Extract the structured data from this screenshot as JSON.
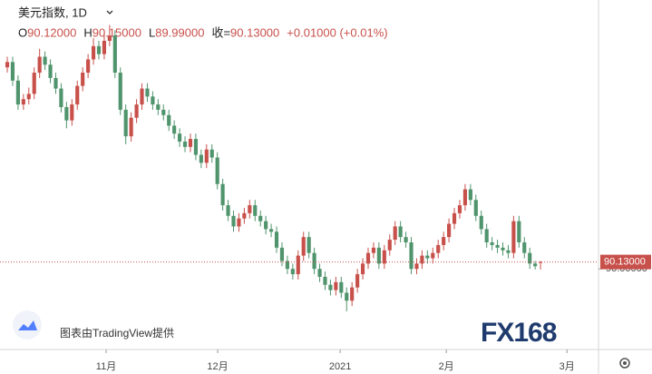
{
  "chart_data": {
    "type": "candlestick",
    "title": "美元指数, 1D",
    "ohlc_legend": [
      {
        "label": "O",
        "value": "90.12000"
      },
      {
        "label": "H",
        "value": "90.15000"
      },
      {
        "label": "L",
        "value": "89.99000"
      },
      {
        "label": "收=",
        "value": "90.13000"
      }
    ],
    "change": "+0.01000 (+0.01%)",
    "attribution": "图表由TradingView提供",
    "watermark": "FX168",
    "up_color": "#c8504a",
    "down_color": "#4f946c",
    "xlim": [
      -1.35,
      109.76
    ],
    "ylim": [
      88.48,
      95.07
    ],
    "xticks": [
      {
        "value": 18.35,
        "label": "11月"
      },
      {
        "value": 39.06,
        "label": "12月"
      },
      {
        "value": 61.8,
        "label": "2021"
      },
      {
        "value": 81.5,
        "label": "2月"
      },
      {
        "value": 103.9,
        "label": "3月"
      }
    ],
    "yticks": [
      {
        "value": 90,
        "label": "90.00000"
      }
    ],
    "last_price": {
      "value": 90.13,
      "label": "90.13000"
    },
    "candles": [
      [
        93.8,
        94.0,
        93.7,
        93.9
      ],
      [
        93.9,
        94.0,
        93.45,
        93.55
      ],
      [
        93.55,
        93.65,
        93.0,
        93.1
      ],
      [
        93.1,
        93.3,
        93.0,
        93.2
      ],
      [
        93.2,
        93.42,
        93.1,
        93.3
      ],
      [
        93.3,
        93.8,
        93.2,
        93.7
      ],
      [
        93.7,
        94.15,
        93.6,
        94.0
      ],
      [
        94.0,
        94.1,
        93.75,
        93.85
      ],
      [
        93.85,
        93.95,
        93.5,
        93.6
      ],
      [
        93.6,
        93.7,
        93.3,
        93.4
      ],
      [
        93.4,
        93.5,
        92.95,
        93.05
      ],
      [
        93.05,
        93.15,
        92.65,
        92.8
      ],
      [
        92.8,
        93.2,
        92.7,
        93.1
      ],
      [
        93.1,
        93.55,
        93.0,
        93.45
      ],
      [
        93.45,
        93.8,
        93.35,
        93.7
      ],
      [
        93.7,
        94.05,
        93.6,
        93.95
      ],
      [
        93.95,
        94.35,
        93.85,
        94.2
      ],
      [
        94.2,
        94.3,
        93.95,
        94.05
      ],
      [
        94.05,
        94.5,
        93.95,
        94.3
      ],
      [
        94.3,
        94.6,
        94.2,
        94.4
      ],
      [
        94.4,
        94.5,
        93.6,
        93.7
      ],
      [
        93.7,
        93.8,
        92.9,
        93.0
      ],
      [
        93.0,
        93.1,
        92.35,
        92.5
      ],
      [
        92.5,
        92.95,
        92.4,
        92.85
      ],
      [
        92.85,
        93.2,
        92.75,
        93.1
      ],
      [
        93.1,
        93.5,
        93.0,
        93.4
      ],
      [
        93.4,
        93.5,
        93.15,
        93.25
      ],
      [
        93.25,
        93.35,
        93.0,
        93.1
      ],
      [
        93.1,
        93.2,
        92.9,
        93.0
      ],
      [
        93.0,
        93.1,
        92.8,
        92.9
      ],
      [
        92.9,
        93.0,
        92.6,
        92.7
      ],
      [
        92.7,
        92.8,
        92.45,
        92.55
      ],
      [
        92.55,
        92.65,
        92.3,
        92.4
      ],
      [
        92.4,
        92.5,
        92.2,
        92.3
      ],
      [
        92.3,
        92.55,
        92.2,
        92.45
      ],
      [
        92.45,
        92.55,
        92.05,
        92.15
      ],
      [
        92.15,
        92.25,
        91.9,
        92.0
      ],
      [
        92.0,
        92.35,
        91.9,
        92.25
      ],
      [
        92.25,
        92.35,
        92.0,
        92.1
      ],
      [
        92.1,
        92.2,
        91.5,
        91.6
      ],
      [
        91.6,
        91.7,
        91.1,
        91.2
      ],
      [
        91.2,
        91.3,
        90.9,
        91.0
      ],
      [
        91.0,
        91.1,
        90.7,
        90.8
      ],
      [
        90.8,
        91.05,
        90.7,
        90.95
      ],
      [
        90.95,
        91.15,
        90.85,
        91.05
      ],
      [
        91.05,
        91.3,
        90.95,
        91.2
      ],
      [
        91.2,
        91.3,
        90.9,
        91.0
      ],
      [
        91.0,
        91.1,
        90.8,
        90.9
      ],
      [
        90.9,
        91.0,
        90.65,
        90.75
      ],
      [
        90.75,
        90.85,
        90.6,
        90.7
      ],
      [
        90.7,
        90.8,
        90.3,
        90.4
      ],
      [
        90.4,
        90.5,
        90.05,
        90.15
      ],
      [
        90.15,
        90.25,
        89.9,
        90.0
      ],
      [
        90.0,
        90.1,
        89.8,
        89.9
      ],
      [
        89.9,
        90.35,
        89.8,
        90.25
      ],
      [
        90.25,
        90.7,
        90.15,
        90.6
      ],
      [
        90.6,
        90.7,
        90.2,
        90.3
      ],
      [
        90.3,
        90.4,
        89.9,
        90.0
      ],
      [
        90.0,
        90.1,
        89.75,
        89.85
      ],
      [
        89.85,
        89.95,
        89.6,
        89.7
      ],
      [
        89.7,
        89.8,
        89.5,
        89.6
      ],
      [
        89.6,
        89.85,
        89.5,
        89.75
      ],
      [
        89.75,
        89.85,
        89.45,
        89.55
      ],
      [
        89.55,
        89.65,
        89.2,
        89.4
      ],
      [
        89.4,
        89.75,
        89.3,
        89.65
      ],
      [
        89.65,
        90.0,
        89.55,
        89.9
      ],
      [
        89.9,
        90.2,
        89.8,
        90.1
      ],
      [
        90.1,
        90.4,
        90.0,
        90.3
      ],
      [
        90.3,
        90.5,
        90.2,
        90.4
      ],
      [
        90.4,
        90.5,
        90.0,
        90.1
      ],
      [
        90.1,
        90.45,
        90.0,
        90.35
      ],
      [
        90.35,
        90.65,
        90.25,
        90.55
      ],
      [
        90.55,
        90.9,
        90.45,
        90.8
      ],
      [
        90.8,
        90.9,
        90.5,
        90.6
      ],
      [
        90.6,
        90.7,
        90.4,
        90.5
      ],
      [
        90.5,
        90.6,
        89.9,
        90.0
      ],
      [
        90.0,
        90.2,
        89.9,
        90.1
      ],
      [
        90.1,
        90.35,
        90.0,
        90.25
      ],
      [
        90.25,
        90.35,
        90.1,
        90.2
      ],
      [
        90.2,
        90.4,
        90.1,
        90.3
      ],
      [
        90.3,
        90.55,
        90.2,
        90.45
      ],
      [
        90.45,
        90.7,
        90.35,
        90.6
      ],
      [
        90.6,
        90.95,
        90.5,
        90.85
      ],
      [
        90.85,
        91.15,
        90.75,
        91.05
      ],
      [
        91.05,
        91.3,
        90.95,
        91.2
      ],
      [
        91.2,
        91.6,
        91.1,
        91.5
      ],
      [
        91.5,
        91.6,
        91.2,
        91.3
      ],
      [
        91.3,
        91.4,
        90.9,
        91.0
      ],
      [
        91.0,
        91.1,
        90.65,
        90.75
      ],
      [
        90.75,
        90.85,
        90.4,
        90.5
      ],
      [
        90.5,
        90.6,
        90.35,
        90.45
      ],
      [
        90.45,
        90.55,
        90.3,
        90.4
      ],
      [
        90.4,
        90.5,
        90.25,
        90.35
      ],
      [
        90.35,
        90.45,
        90.2,
        90.3
      ],
      [
        90.3,
        91.0,
        90.2,
        90.9
      ],
      [
        90.9,
        91.0,
        90.4,
        90.5
      ],
      [
        90.5,
        90.6,
        90.2,
        90.3
      ],
      [
        90.3,
        90.4,
        90.0,
        90.1
      ],
      [
        90.1,
        90.15,
        89.99,
        90.05
      ],
      [
        90.12,
        90.15,
        89.99,
        90.13
      ]
    ]
  }
}
